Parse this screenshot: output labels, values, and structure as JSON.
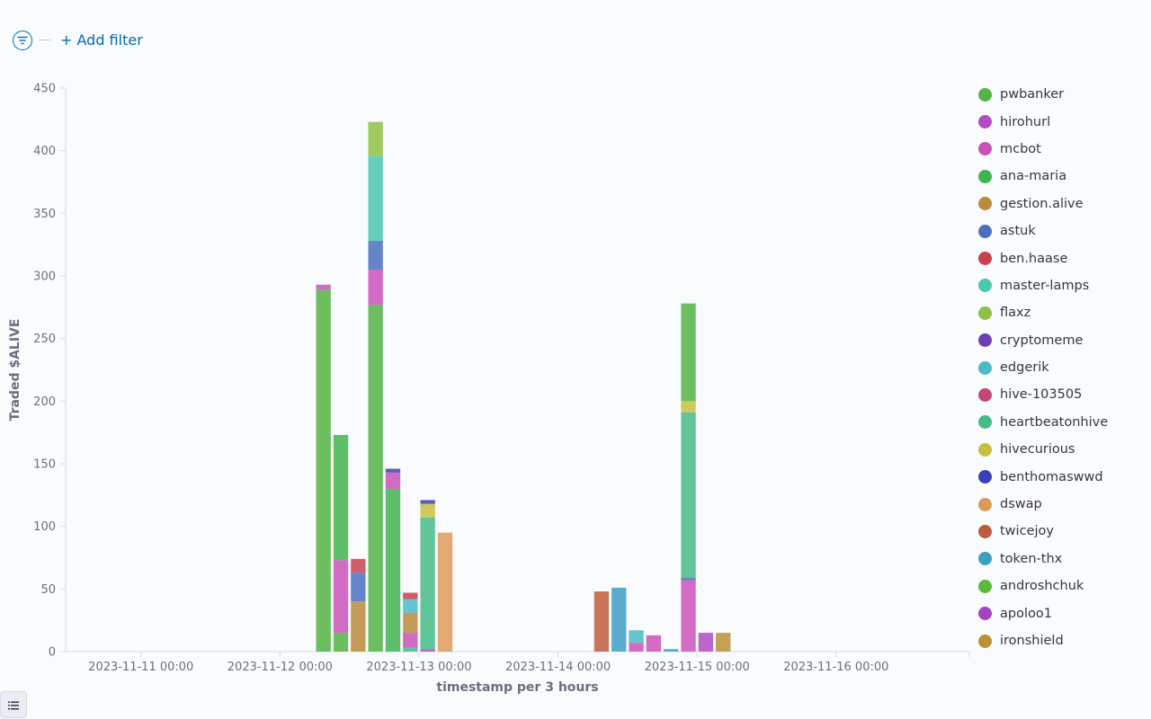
{
  "filter_bar": {
    "add_filter_label": "+ Add filter",
    "filter_icon": "filter-lines-icon"
  },
  "legend_toggle_icon": "list-icon",
  "chart_data": {
    "type": "bar",
    "stacked": true,
    "xlabel": "timestamp per 3 hours",
    "ylabel": "Traded $ALIVE",
    "ylim": [
      0,
      450
    ],
    "yticks": [
      0,
      50,
      100,
      150,
      200,
      250,
      300,
      350,
      400,
      450
    ],
    "x_domain": [
      "2023-11-10 11:00",
      "2023-11-16 23:00"
    ],
    "xticks": [
      "2023-11-11 00:00",
      "2023-11-12 00:00",
      "2023-11-13 00:00",
      "2023-11-14 00:00",
      "2023-11-15 00:00",
      "2023-11-16 00:00"
    ],
    "grid": false,
    "legend_position": "right",
    "series": [
      {
        "name": "pwbanker",
        "color": "#54b345"
      },
      {
        "name": "hirohurl",
        "color": "#b44bc3"
      },
      {
        "name": "mcbot",
        "color": "#c951b8"
      },
      {
        "name": "ana-maria",
        "color": "#3fb34f"
      },
      {
        "name": "gestion.alive",
        "color": "#bb8a3e"
      },
      {
        "name": "astuk",
        "color": "#4a6fc1"
      },
      {
        "name": "ben.haase",
        "color": "#c9414e"
      },
      {
        "name": "master-lamps",
        "color": "#4dc6b0"
      },
      {
        "name": "flaxz",
        "color": "#8fbf44"
      },
      {
        "name": "cryptomeme",
        "color": "#6c3fb8"
      },
      {
        "name": "edgerik",
        "color": "#4bbac4"
      },
      {
        "name": "hive-103505",
        "color": "#c34579"
      },
      {
        "name": "heartbeatonhive",
        "color": "#45bb87"
      },
      {
        "name": "hivecurious",
        "color": "#c7bf3f"
      },
      {
        "name": "benthomaswwd",
        "color": "#3c40b4"
      },
      {
        "name": "dswap",
        "color": "#dc9a5b"
      },
      {
        "name": "twicejoy",
        "color": "#c05a3c"
      },
      {
        "name": "token-thx",
        "color": "#3d9ec4"
      },
      {
        "name": "androshchuk",
        "color": "#5cba3b"
      },
      {
        "name": "apoloo1",
        "color": "#a544c4"
      },
      {
        "name": "ironshield",
        "color": "#bb9235"
      }
    ],
    "stacks": [
      {
        "x": "2023-11-12 06:00",
        "segments": [
          {
            "series": "pwbanker",
            "value": 289
          },
          {
            "series": "mcbot",
            "value": 4
          }
        ]
      },
      {
        "x": "2023-11-12 09:00",
        "segments": [
          {
            "series": "pwbanker",
            "value": 15
          },
          {
            "series": "mcbot",
            "value": 58
          },
          {
            "series": "ana-maria",
            "value": 100
          }
        ]
      },
      {
        "x": "2023-11-12 12:00",
        "segments": [
          {
            "series": "gestion.alive",
            "value": 40
          },
          {
            "series": "astuk",
            "value": 23
          },
          {
            "series": "ben.haase",
            "value": 11
          }
        ]
      },
      {
        "x": "2023-11-12 15:00",
        "segments": [
          {
            "series": "pwbanker",
            "value": 277
          },
          {
            "series": "mcbot",
            "value": 28
          },
          {
            "series": "astuk",
            "value": 23
          },
          {
            "series": "master-lamps",
            "value": 68
          },
          {
            "series": "flaxz",
            "value": 27
          }
        ]
      },
      {
        "x": "2023-11-12 18:00",
        "segments": [
          {
            "series": "ana-maria",
            "value": 130
          },
          {
            "series": "mcbot",
            "value": 13
          },
          {
            "series": "benthomaswwd",
            "value": 3
          }
        ]
      },
      {
        "x": "2023-11-12 21:00",
        "segments": [
          {
            "series": "heartbeatonhive",
            "value": 3
          },
          {
            "series": "mcbot",
            "value": 12
          },
          {
            "series": "gestion.alive",
            "value": 16
          },
          {
            "series": "edgerik",
            "value": 11
          },
          {
            "series": "ben.haase",
            "value": 5
          }
        ]
      },
      {
        "x": "2023-11-13 00:00",
        "segments": [
          {
            "series": "hirohurl",
            "value": 2
          },
          {
            "series": "heartbeatonhive",
            "value": 105
          },
          {
            "series": "hivecurious",
            "value": 11
          },
          {
            "series": "benthomaswwd",
            "value": 3
          }
        ]
      },
      {
        "x": "2023-11-13 03:00",
        "segments": [
          {
            "series": "dswap",
            "value": 95
          }
        ]
      },
      {
        "x": "2023-11-14 06:00",
        "segments": [
          {
            "series": "twicejoy",
            "value": 48
          }
        ]
      },
      {
        "x": "2023-11-14 09:00",
        "segments": [
          {
            "series": "token-thx",
            "value": 51
          }
        ]
      },
      {
        "x": "2023-11-14 12:00",
        "segments": [
          {
            "series": "mcbot",
            "value": 7
          },
          {
            "series": "edgerik",
            "value": 10
          }
        ]
      },
      {
        "x": "2023-11-14 15:00",
        "segments": [
          {
            "series": "mcbot",
            "value": 13
          }
        ]
      },
      {
        "x": "2023-11-14 18:00",
        "segments": [
          {
            "series": "token-thx",
            "value": 2
          }
        ]
      },
      {
        "x": "2023-11-14 21:00",
        "segments": [
          {
            "series": "mcbot",
            "value": 57
          },
          {
            "series": "astuk",
            "value": 2
          },
          {
            "series": "heartbeatonhive",
            "value": 132
          },
          {
            "series": "hivecurious",
            "value": 9
          },
          {
            "series": "pwbanker",
            "value": 78
          }
        ]
      },
      {
        "x": "2023-11-15 00:00",
        "segments": [
          {
            "series": "hirohurl",
            "value": 15
          }
        ]
      },
      {
        "x": "2023-11-15 03:00",
        "segments": [
          {
            "series": "ironshield",
            "value": 15
          }
        ]
      }
    ]
  }
}
